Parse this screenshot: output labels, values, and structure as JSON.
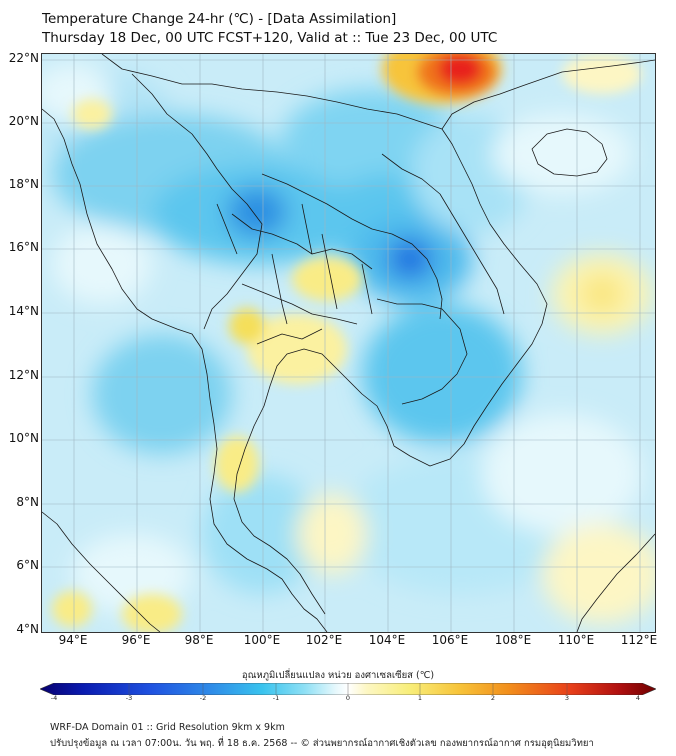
{
  "header": {
    "title_line1": "Temperature Change 24-hr (℃) - [Data Assimilation]",
    "title_line2": "Thursday 18 Dec, 00 UTC FCST+120, Valid at :: Tue 23 Dec, 00 UTC"
  },
  "map": {
    "lat_labels": [
      "22°N",
      "20°N",
      "18°N",
      "16°N",
      "14°N",
      "12°N",
      "10°N",
      "8°N",
      "6°N",
      "4°N"
    ],
    "lon_labels": [
      "94°E",
      "96°E",
      "98°E",
      "100°E",
      "102°E",
      "104°E",
      "106°E",
      "108°E",
      "110°E",
      "112°E"
    ],
    "lat_range": [
      4,
      22.3
    ],
    "lon_range": [
      93,
      112.5
    ]
  },
  "colorbar": {
    "title": "อุณหภูมิเปลี่ยนแปลง หน่วย องศาเซลเซียส (℃)",
    "tick_labels": [
      "-4",
      "-3",
      "-2",
      "-1",
      "0",
      "1",
      "2",
      "3",
      "4"
    ],
    "range": [
      -4,
      4
    ],
    "colors": [
      "#08006e",
      "#0a1bb0",
      "#1f52e0",
      "#2f8de8",
      "#39c3ee",
      "#8fe0f5",
      "#e6f8fc",
      "#ffffff",
      "#fdf7c4",
      "#f8ee7a",
      "#f7c43a",
      "#f28f1c",
      "#e8401a",
      "#b01010",
      "#6e0000"
    ]
  },
  "footer": {
    "line1": "WRF-DA Domain 01 :: Grid Resolution 9km x 9km",
    "line2": "ปรับปรุงข้อมูล ณ เวลา 07:00น. วัน พฤ. ที่ 18 ธ.ค. 2568 -- © ส่วนพยากรณ์อากาศเชิงตัวเลข กองพยากรณ์อากาศ กรมอุตุนิยมวิทยา"
  }
}
